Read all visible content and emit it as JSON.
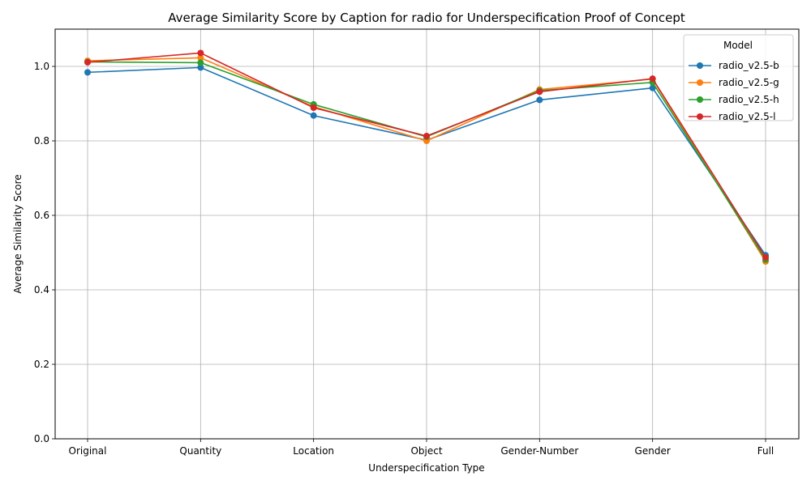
{
  "chart_data": {
    "type": "line",
    "title": "Average Similarity Score by Caption for radio for Underspecification Proof of Concept",
    "xlabel": "Underspecification Type",
    "ylabel": "Average Similarity Score",
    "categories": [
      "Original",
      "Quantity",
      "Location",
      "Object",
      "Gender-Number",
      "Gender",
      "Full"
    ],
    "ylim": [
      0.0,
      1.1
    ],
    "yticks": [
      0.0,
      0.2,
      0.4,
      0.6,
      0.8,
      1.0
    ],
    "ytick_labels": [
      "0.0",
      "0.2",
      "0.4",
      "0.6",
      "0.8",
      "1.0"
    ],
    "grid": true,
    "legend": {
      "title": "Model",
      "placement": "top-right"
    },
    "series": [
      {
        "name": "radio_v2.5-b",
        "color": "#1f77b4",
        "values": [
          0.984,
          0.997,
          0.868,
          0.802,
          0.91,
          0.942,
          0.493
        ]
      },
      {
        "name": "radio_v2.5-g",
        "color": "#ff7f0e",
        "values": [
          1.015,
          1.023,
          0.892,
          0.8,
          0.938,
          0.966,
          0.476
        ]
      },
      {
        "name": "radio_v2.5-h",
        "color": "#2ca02c",
        "values": [
          1.012,
          1.01,
          0.898,
          0.811,
          0.935,
          0.957,
          0.481
        ]
      },
      {
        "name": "radio_v2.5-l",
        "color": "#d62728",
        "values": [
          1.011,
          1.036,
          0.889,
          0.813,
          0.932,
          0.967,
          0.487
        ]
      }
    ]
  }
}
